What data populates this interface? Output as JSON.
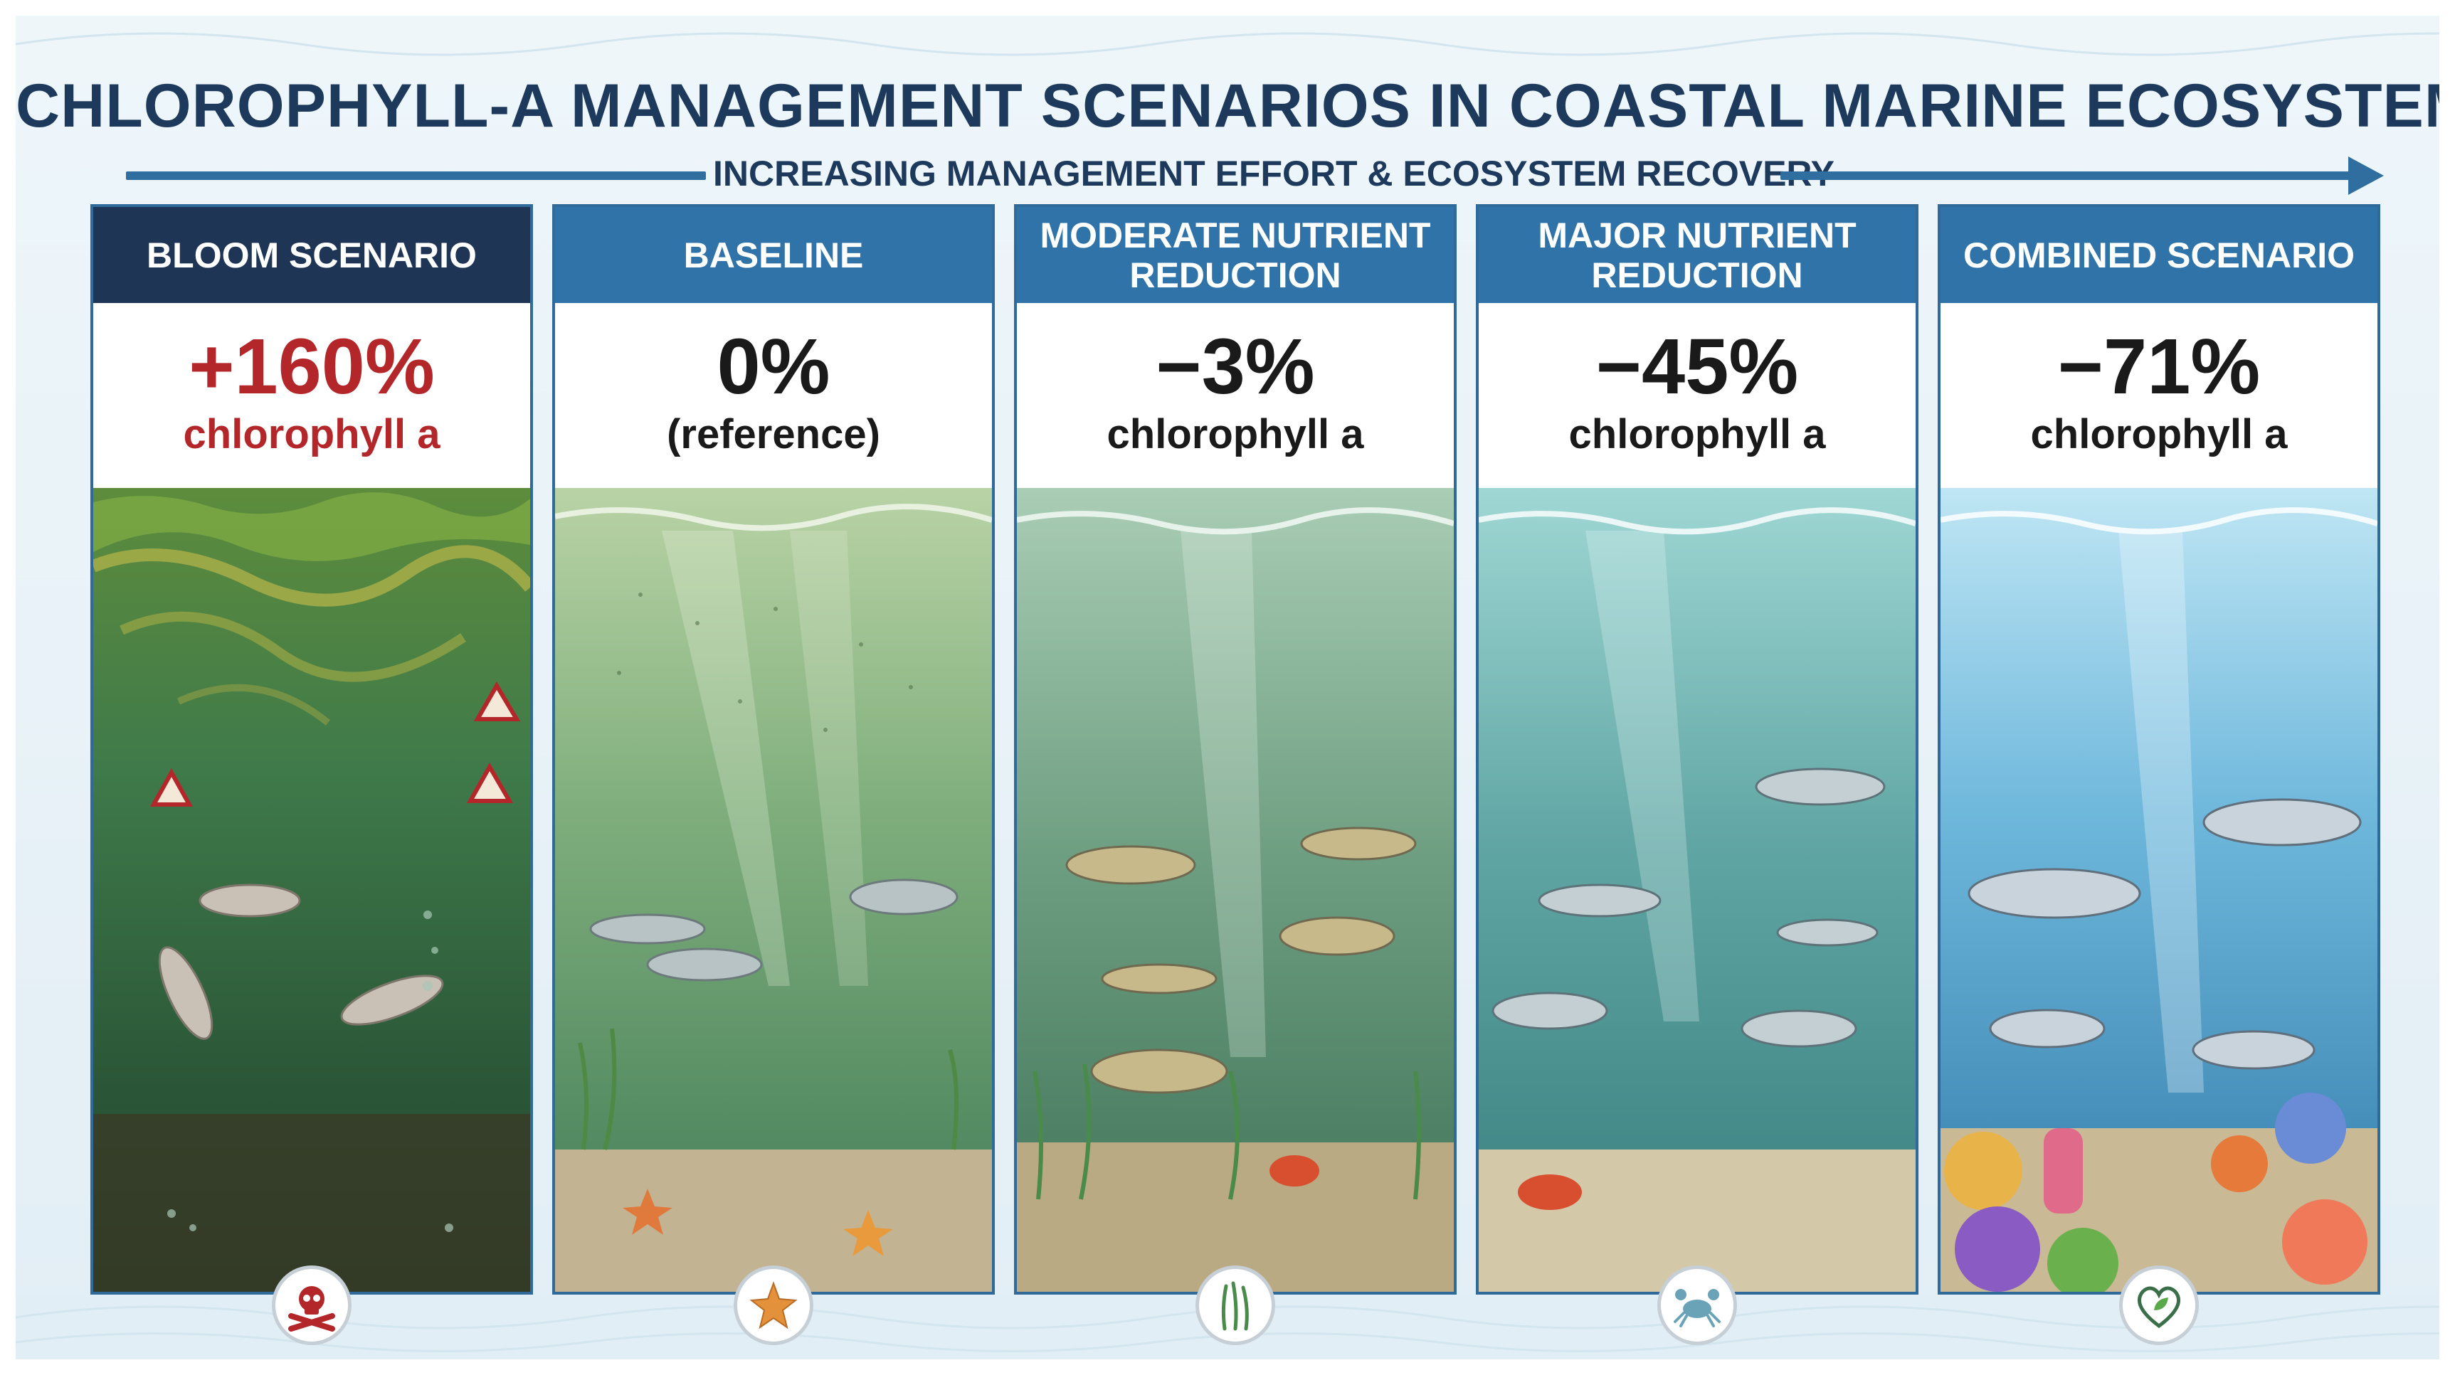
{
  "title": "CHLOROPHYLL-A MANAGEMENT SCENARIOS IN COASTAL MARINE ECOSYSTEMS",
  "effort_label": "INCREASING MANAGEMENT EFFORT & ECOSYSTEM RECOVERY",
  "panels": [
    {
      "header": "BLOOM SCENARIO",
      "value": "+160%",
      "sub": "chlorophyll a",
      "header_color": "#1e3556",
      "value_color": "#b3262a",
      "water_top": "#3f7a4a",
      "water_bottom": "#21452e",
      "icon": "skull-crossbones-icon"
    },
    {
      "header": "BASELINE",
      "value": "0%",
      "sub": "(reference)",
      "header_color": "#2f73a8",
      "value_color": "#1a1a1a",
      "water_top": "#a9c9a0",
      "water_bottom": "#4d8a5e",
      "icon": "starfish-icon"
    },
    {
      "header": "MODERATE NUTRIENT REDUCTION",
      "value": "−3%",
      "sub": "chlorophyll a",
      "header_color": "#2f73a8",
      "value_color": "#1a1a1a",
      "water_top": "#9fc8b0",
      "water_bottom": "#477f63",
      "icon": "seagrass-icon"
    },
    {
      "header": "MAJOR NUTRIENT REDUCTION",
      "value": "−45%",
      "sub": "chlorophyll a",
      "header_color": "#2f73a8",
      "value_color": "#1a1a1a",
      "water_top": "#8fd0d0",
      "water_bottom": "#3f8a8c",
      "icon": "crab-icon"
    },
    {
      "header": "COMBINED SCENARIO",
      "value": "−71%",
      "sub": "chlorophyll a",
      "header_color": "#2f73a8",
      "value_color": "#1a1a1a",
      "water_top": "#a6dcf0",
      "water_bottom": "#2f7fb0",
      "icon": "heart-leaf-icon"
    }
  ]
}
